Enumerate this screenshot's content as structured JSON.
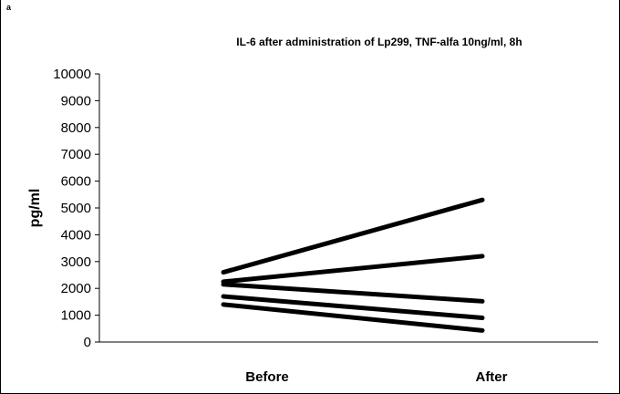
{
  "panel_label": "a",
  "chart_data": {
    "type": "line",
    "title": "IL-6 after administration of Lp299, TNF-alfa 10ng/ml, 8h",
    "xlabel": "",
    "ylabel": "pg/ml",
    "categories": [
      "Before",
      "After"
    ],
    "ylim": [
      0,
      10000
    ],
    "yticks": [
      0,
      1000,
      2000,
      3000,
      4000,
      5000,
      6000,
      7000,
      8000,
      9000,
      10000
    ],
    "grid": false,
    "legend": "none",
    "line_color": "#000000",
    "series": [
      {
        "values": [
          2600,
          5300
        ]
      },
      {
        "values": [
          2250,
          3200
        ]
      },
      {
        "values": [
          2150,
          1520
        ]
      },
      {
        "values": [
          1700,
          900
        ]
      },
      {
        "values": [
          1400,
          430
        ]
      }
    ]
  }
}
